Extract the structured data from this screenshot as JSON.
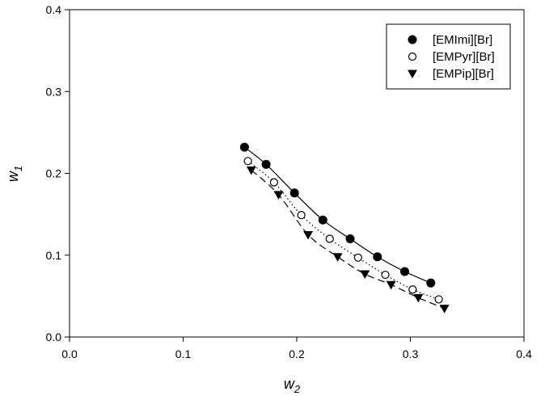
{
  "chart_data": {
    "type": "scatter",
    "xlabel": "w",
    "xlabel_sub": "2",
    "ylabel": "w",
    "ylabel_sub": "1",
    "xlim": [
      0.0,
      0.4
    ],
    "ylim": [
      0.0,
      0.4
    ],
    "xticks": [
      "0.0",
      "0.1",
      "0.2",
      "0.3",
      "0.4"
    ],
    "yticks": [
      "0.0",
      "0.1",
      "0.2",
      "0.3",
      "0.4"
    ],
    "grid": false,
    "legend_position": "top-right",
    "series": [
      {
        "name": "[EMImi][Br]",
        "marker": "filled-circle",
        "line": "solid",
        "color": "#000000",
        "x": [
          0.154,
          0.173,
          0.198,
          0.223,
          0.247,
          0.271,
          0.295,
          0.318
        ],
        "y": [
          0.232,
          0.211,
          0.176,
          0.143,
          0.12,
          0.098,
          0.08,
          0.066
        ]
      },
      {
        "name": "[EMPyr][Br]",
        "marker": "open-circle",
        "line": "dotted",
        "color": "#000000",
        "x": [
          0.157,
          0.18,
          0.204,
          0.229,
          0.254,
          0.278,
          0.302,
          0.325
        ],
        "y": [
          0.215,
          0.189,
          0.149,
          0.12,
          0.097,
          0.076,
          0.058,
          0.046
        ]
      },
      {
        "name": "[EMPip][Br]",
        "marker": "filled-triangle-down",
        "line": "dashed",
        "color": "#000000",
        "x": [
          0.16,
          0.184,
          0.21,
          0.236,
          0.26,
          0.283,
          0.307,
          0.33
        ],
        "y": [
          0.204,
          0.174,
          0.125,
          0.098,
          0.077,
          0.064,
          0.048,
          0.035
        ]
      }
    ]
  }
}
